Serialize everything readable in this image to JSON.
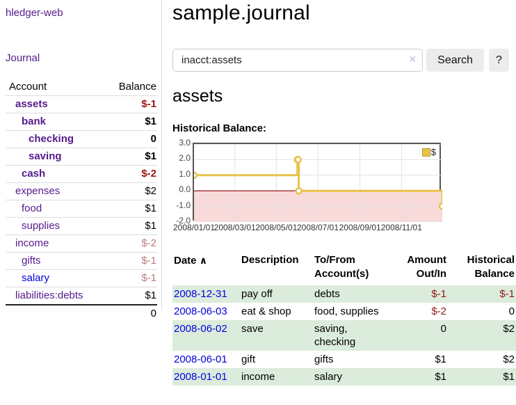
{
  "sidebar": {
    "brand": "hledger-web",
    "nav": {
      "journal": "Journal"
    },
    "accounts": {
      "headers": [
        "Account",
        "Balance"
      ],
      "rows": [
        {
          "name": "assets",
          "indent": 1,
          "balance": "$-1",
          "bold": true,
          "balance_style": "neg"
        },
        {
          "name": "bank",
          "indent": 2,
          "balance": "$1",
          "bold": true,
          "balance_style": "pos"
        },
        {
          "name": "checking",
          "indent": 3,
          "balance": "0",
          "bold": true,
          "balance_style": "pos"
        },
        {
          "name": "saving",
          "indent": 3,
          "balance": "$1",
          "bold": true,
          "balance_style": "pos"
        },
        {
          "name": "cash",
          "indent": 2,
          "balance": "$-2",
          "bold": true,
          "balance_style": "neg"
        },
        {
          "name": "expenses",
          "indent": 1,
          "balance": "$2",
          "bold": false,
          "balance_style": "pos"
        },
        {
          "name": "food",
          "indent": 2,
          "balance": "$1",
          "bold": false,
          "balance_style": "pos"
        },
        {
          "name": "supplies",
          "indent": 2,
          "balance": "$1",
          "bold": false,
          "balance_style": "pos"
        },
        {
          "name": "income",
          "indent": 1,
          "balance": "$-2",
          "bold": false,
          "balance_style": "neg-faded"
        },
        {
          "name": "gifts",
          "indent": 2,
          "balance": "$-1",
          "bold": false,
          "balance_style": "neg-faded"
        },
        {
          "name": "salary",
          "indent": 2,
          "balance": "$-1",
          "bold": false,
          "balance_style": "neg-faded",
          "link_style": "blue"
        },
        {
          "name": "liabilities:debts",
          "indent": 1,
          "balance": "$1",
          "bold": false,
          "balance_style": "pos"
        }
      ],
      "total": "0"
    }
  },
  "main": {
    "title": "sample.journal",
    "search": {
      "value": "inacct:assets",
      "clear_icon": "×",
      "search_button": "Search",
      "help_button": "?"
    },
    "account_heading": "assets",
    "chart_label": "Historical Balance:",
    "register": {
      "headers": {
        "date": "Date",
        "sort_icon": "∧",
        "description": "Description",
        "accounts": "To/From\nAccount(s)",
        "amount": "Amount\nOut/In",
        "balance": "Historical\nBalance"
      },
      "rows": [
        {
          "date": "2008-12-31",
          "description": "pay off",
          "accounts": "debts",
          "amount": "$-1",
          "amount_neg": true,
          "balance": "$-1",
          "balance_neg": true
        },
        {
          "date": "2008-06-03",
          "description": "eat & shop",
          "accounts": "food, supplies",
          "amount": "$-2",
          "amount_neg": true,
          "balance": "0",
          "balance_neg": false
        },
        {
          "date": "2008-06-02",
          "description": "save",
          "accounts": "saving,\nchecking",
          "amount": "0",
          "amount_neg": false,
          "balance": "$2",
          "balance_neg": false
        },
        {
          "date": "2008-06-01",
          "description": "gift",
          "accounts": "gifts",
          "amount": "$1",
          "amount_neg": false,
          "balance": "$2",
          "balance_neg": false
        },
        {
          "date": "2008-01-01",
          "description": "income",
          "accounts": "salary",
          "amount": "$1",
          "amount_neg": false,
          "balance": "$1",
          "balance_neg": false
        }
      ]
    }
  },
  "chart_data": {
    "type": "line",
    "title": "Historical Balance:",
    "step": true,
    "grid": true,
    "x_range": [
      "2008-01-01",
      "2008-12-31"
    ],
    "x_ticks": [
      {
        "date": "2008-01-01",
        "label": "2008/01/01"
      },
      {
        "date": "2008-03-01",
        "label": "2008/03/01"
      },
      {
        "date": "2008-05-01",
        "label": "2008/05/01"
      },
      {
        "date": "2008-07-01",
        "label": "2008/07/01"
      },
      {
        "date": "2008-09-01",
        "label": "2008/09/01"
      },
      {
        "date": "2008-11-01",
        "label": "2008/11/01"
      }
    ],
    "y_ticks": [
      {
        "value": 3,
        "label": "3.0"
      },
      {
        "value": 2,
        "label": "2.0"
      },
      {
        "value": 1,
        "label": "1.0"
      },
      {
        "value": 0,
        "label": "0.0"
      },
      {
        "value": -1,
        "label": "-1.0"
      },
      {
        "value": -2,
        "label": "-2.0"
      }
    ],
    "ylim": [
      -2,
      3
    ],
    "legend": {
      "position": "top-right"
    },
    "series": [
      {
        "name": "$",
        "color": "#e8c24a",
        "points": [
          {
            "date": "2008-01-01",
            "value": 1
          },
          {
            "date": "2008-06-01",
            "value": 2
          },
          {
            "date": "2008-06-02",
            "value": 2
          },
          {
            "date": "2008-06-03",
            "value": 0
          },
          {
            "date": "2008-12-31",
            "value": -1
          }
        ]
      }
    ],
    "colors": {
      "negative_region_fill": "#f8dada",
      "zero_line": "#8b0000",
      "grid_line": "#e2e2e2",
      "plot_border": "#555555"
    }
  }
}
